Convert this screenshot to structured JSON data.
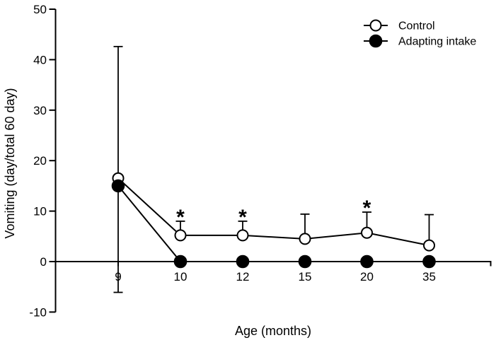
{
  "figure": {
    "background": "#ffffff",
    "ink_color": "#000000"
  },
  "chart_data": {
    "type": "line",
    "title": "",
    "xlabel": "Age (months)",
    "ylabel": "Vomiting (day/total 60 day)",
    "x_categories": [
      "9",
      "10",
      "12",
      "15",
      "20",
      "35"
    ],
    "y_ticks": [
      50,
      40,
      30,
      20,
      10,
      0,
      -10
    ],
    "ylim": [
      -10,
      50
    ],
    "grid": false,
    "legend_position": "top-right",
    "series": [
      {
        "name": "Control",
        "marker": "open-circle",
        "color": "#000000",
        "fill": "#ffffff",
        "values": [
          16.5,
          5.2,
          5.2,
          4.5,
          5.7,
          3.2
        ],
        "error_up": [
          26.1,
          2.8,
          2.8,
          4.9,
          4.1,
          6.1
        ],
        "error_down": [
          22.6,
          0,
          0,
          0,
          0,
          0
        ]
      },
      {
        "name": "Adapting intake",
        "marker": "filled-circle",
        "color": "#000000",
        "fill": "#000000",
        "values": [
          15,
          0,
          0,
          0,
          0,
          0
        ],
        "error_up": [
          0,
          0,
          0,
          0,
          0,
          0
        ],
        "error_down": [
          0,
          0,
          0,
          0,
          0,
          0
        ]
      }
    ],
    "significance": {
      "symbol": "*",
      "at_categories": [
        "10",
        "12",
        "20"
      ]
    }
  }
}
